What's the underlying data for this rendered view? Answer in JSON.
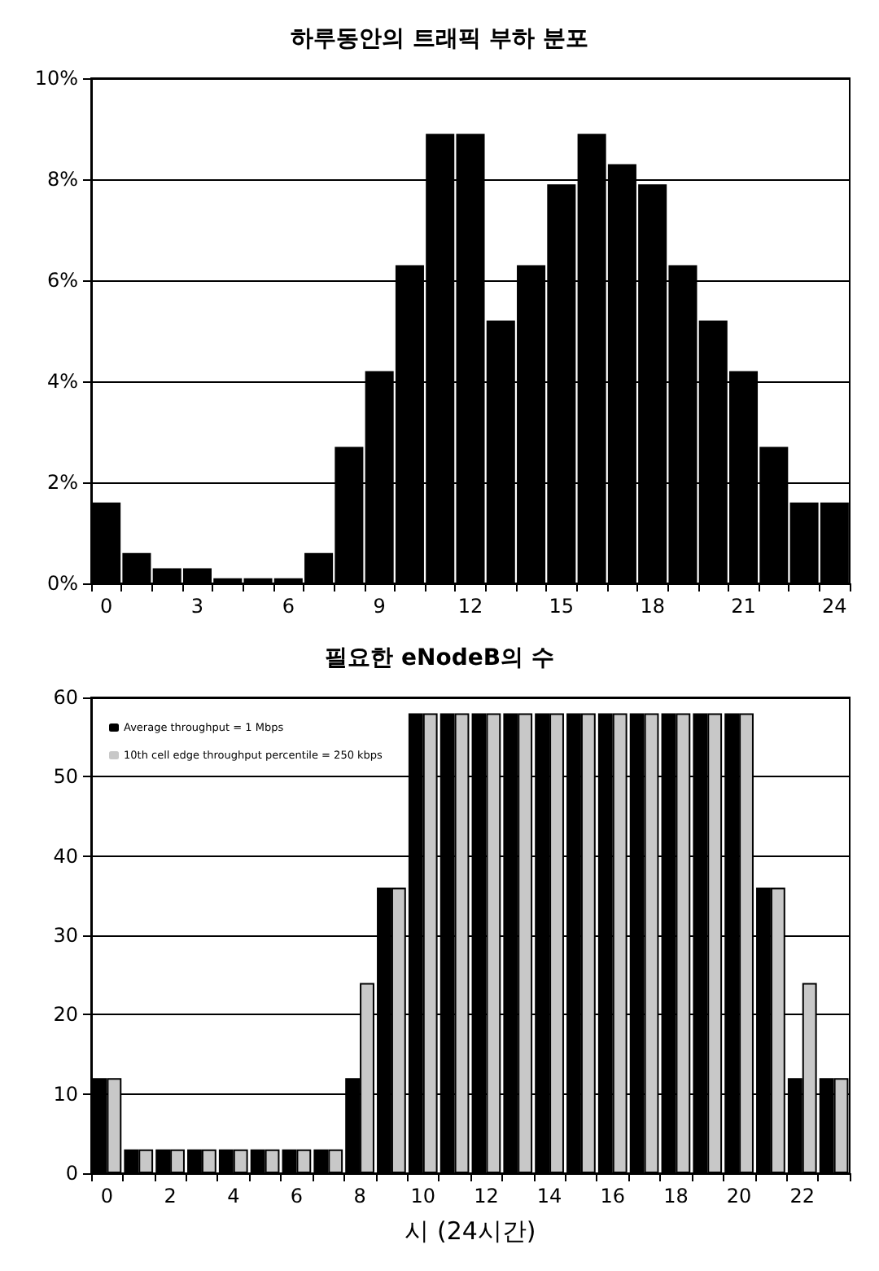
{
  "chart_data": [
    {
      "type": "bar",
      "title": "하루동안의 트래픽 부하 분포",
      "categories": [
        "0",
        null,
        null,
        "3",
        null,
        null,
        "6",
        null,
        null,
        "9",
        null,
        null,
        "12",
        null,
        null,
        "15",
        null,
        null,
        "18",
        null,
        null,
        "21",
        null,
        null,
        "24"
      ],
      "values": [
        1.6,
        0.6,
        0.3,
        0.3,
        0.1,
        0.1,
        0.1,
        0.6,
        2.7,
        4.2,
        6.3,
        8.9,
        8.9,
        5.2,
        6.3,
        7.9,
        8.9,
        8.3,
        7.9,
        6.3,
        5.2,
        4.2,
        2.7,
        1.6,
        1.6
      ],
      "color": "#000000",
      "ylim": [
        0,
        10
      ],
      "yticks": [
        {
          "value": 0,
          "label": "0%"
        },
        {
          "value": 2,
          "label": "2%"
        },
        {
          "value": 4,
          "label": "4%"
        },
        {
          "value": 6,
          "label": "6%"
        },
        {
          "value": 8,
          "label": "8%"
        },
        {
          "value": 10,
          "label": "10%"
        }
      ],
      "grid": "y",
      "legend": false
    },
    {
      "type": "bar",
      "title": "필요한 eNodeB의 수",
      "xlabel": "시 (24시간)",
      "categories": [
        "0",
        null,
        "2",
        null,
        "4",
        null,
        "6",
        null,
        "8",
        null,
        "10",
        null,
        "12",
        null,
        "14",
        null,
        "16",
        null,
        "18",
        null,
        "20",
        null,
        "22",
        null
      ],
      "series": [
        {
          "name": "Average throughput = 1 Mbps",
          "color": "#000000",
          "values": [
            12,
            3,
            3,
            3,
            3,
            3,
            3,
            3,
            12,
            36,
            58,
            58,
            58,
            58,
            58,
            58,
            58,
            58,
            58,
            58,
            58,
            36,
            12,
            12
          ]
        },
        {
          "name": "10th cell edge throughput percentile = 250 kbps",
          "color": "#c8c8c8",
          "values": [
            12,
            3,
            3,
            3,
            3,
            3,
            3,
            3,
            24,
            36,
            58,
            58,
            58,
            58,
            58,
            58,
            58,
            58,
            58,
            58,
            58,
            36,
            24,
            12
          ]
        }
      ],
      "ylim": [
        0,
        60
      ],
      "yticks": [
        0,
        10,
        20,
        30,
        40,
        50,
        60
      ],
      "grid": "y",
      "legend": "top left"
    }
  ]
}
